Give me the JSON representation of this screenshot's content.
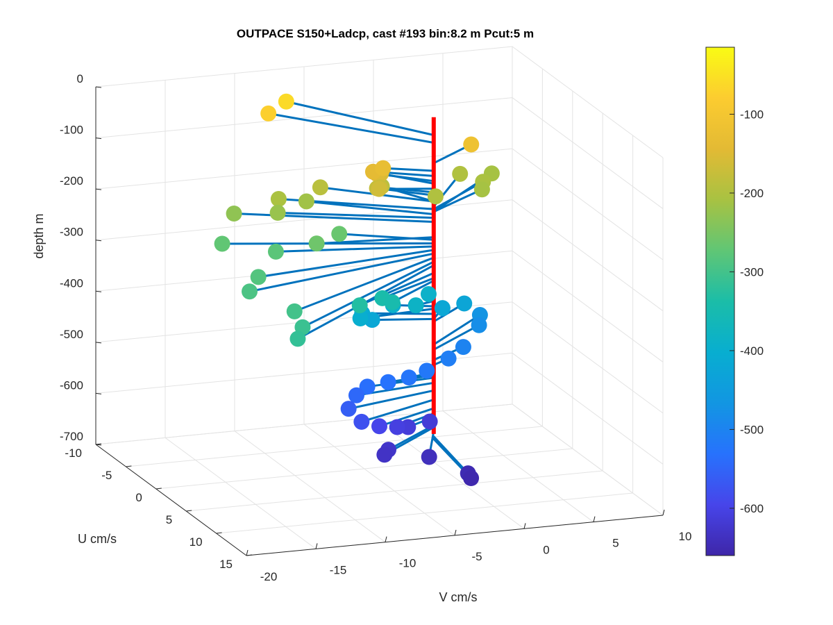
{
  "chart_data": {
    "type": "scatter",
    "plot_style": "3d-stem-scatter",
    "title": "OUTPACE S150+Ladcp, cast #193 bin:8.2 m  Pcut:5 m",
    "xlabel": "V cm/s",
    "ylabel": "U cm/s",
    "zlabel": "depth m",
    "xlim": [
      -20,
      10
    ],
    "ylim": [
      -10,
      15
    ],
    "zlim": [
      -700,
      0
    ],
    "x_ticks": [
      "-20",
      "-15",
      "-10",
      "-5",
      "0",
      "5",
      "10"
    ],
    "y_ticks": [
      "-10",
      "-5",
      "0",
      "5",
      "10",
      "15"
    ],
    "z_ticks": [
      "0",
      "-100",
      "-200",
      "-300",
      "-400",
      "-500",
      "-600",
      "-700"
    ],
    "grid": true,
    "colorbar": {
      "colormap": "parula",
      "range": [
        -660,
        -15
      ],
      "ticks": [
        "-100",
        "-200",
        "-300",
        "-400",
        "-500",
        "-600"
      ]
    },
    "stem_color": "#0072bd",
    "axis_line_color": "#ff0000",
    "series": [
      {
        "points": [
          {
            "v": 4.0,
            "u": -3.0,
            "depth": -115,
            "c": -115
          },
          {
            "v": -3.0,
            "u": -1.5,
            "depth": -130,
            "c": -130
          },
          {
            "v": -3.5,
            "u": -2.0,
            "depth": -140,
            "c": -140
          },
          {
            "v": -3.0,
            "u": -2.5,
            "depth": -150,
            "c": -150
          },
          {
            "v": -2.5,
            "u": -3.0,
            "depth": -155,
            "c": -155
          },
          {
            "v": -3.5,
            "u": -1.0,
            "depth": -165,
            "c": -165
          },
          {
            "v": -3.0,
            "u": -2.0,
            "depth": -172,
            "c": -172
          },
          {
            "v": -3.0,
            "u": -2.5,
            "depth": -178,
            "c": -178
          },
          {
            "v": -6.5,
            "u": -9.5,
            "depth": -60,
            "c": -60
          },
          {
            "v": -8.0,
            "u": -9.0,
            "depth": -75,
            "c": -75
          },
          {
            "v": -6.0,
            "u": -5.0,
            "depth": -190,
            "c": -190
          },
          {
            "v": -9.0,
            "u": -5.0,
            "depth": -205,
            "c": -205
          },
          {
            "v": -7.0,
            "u": -5.0,
            "depth": -215,
            "c": -215
          },
          {
            "v": -9.5,
            "u": -4.0,
            "depth": -222,
            "c": -222
          },
          {
            "v": -12.0,
            "u": -5.5,
            "depth": -230,
            "c": -230
          },
          {
            "v": -8.0,
            "u": -1.0,
            "depth": -260,
            "c": -260
          },
          {
            "v": -5.5,
            "u": -3.0,
            "depth": -265,
            "c": -265
          },
          {
            "v": -13.5,
            "u": -4.0,
            "depth": -272,
            "c": -272
          },
          {
            "v": -10.5,
            "u": -2.0,
            "depth": -278,
            "c": -278
          },
          {
            "v": -13.5,
            "u": 2.0,
            "depth": -285,
            "c": -285
          },
          {
            "v": -15.0,
            "u": 4.0,
            "depth": -292,
            "c": -292
          },
          {
            "v": -13.5,
            "u": 8.0,
            "depth": -300,
            "c": -300
          },
          {
            "v": -14.0,
            "u": 10.5,
            "depth": -308,
            "c": -308
          },
          {
            "v": -15.0,
            "u": 12.0,
            "depth": -315,
            "c": -315
          },
          {
            "v": -7.5,
            "u": 5.0,
            "depth": -330,
            "c": -330
          },
          {
            "v": -5.0,
            "u": 3.0,
            "depth": -340,
            "c": -340
          },
          {
            "v": -4.5,
            "u": 3.5,
            "depth": -345,
            "c": -345
          },
          {
            "v": -2.0,
            "u": -4.0,
            "depth": -190,
            "c": -190
          },
          {
            "v": 1.0,
            "u": -2.0,
            "depth": -200,
            "c": -200
          },
          {
            "v": 4.5,
            "u": -6.0,
            "depth": -200,
            "c": -200
          },
          {
            "v": 7.0,
            "u": -6.5,
            "depth": -210,
            "c": -210
          },
          {
            "v": 5.5,
            "u": -4.5,
            "depth": -205,
            "c": -205
          },
          {
            "v": 5.0,
            "u": -3.5,
            "depth": -210,
            "c": -210
          },
          {
            "v": -1.5,
            "u": 0.5,
            "depth": -385,
            "c": -385
          },
          {
            "v": 0.5,
            "u": -2.0,
            "depth": -390,
            "c": -390
          },
          {
            "v": -2.5,
            "u": -1.0,
            "depth": -395,
            "c": -395
          },
          {
            "v": -5.5,
            "u": 0.5,
            "depth": -400,
            "c": -400
          },
          {
            "v": -4.5,
            "u": -1.5,
            "depth": -410,
            "c": -410
          },
          {
            "v": -4.0,
            "u": -1.0,
            "depth": -420,
            "c": -420
          },
          {
            "v": 1.5,
            "u": -2.0,
            "depth": -420,
            "c": -420
          },
          {
            "v": 3.5,
            "u": -3.0,
            "depth": -425,
            "c": -425
          },
          {
            "v": 5.5,
            "u": -5.0,
            "depth": -470,
            "c": -470
          },
          {
            "v": 5.0,
            "u": -4.0,
            "depth": -480,
            "c": -480
          },
          {
            "v": 3.0,
            "u": -2.0,
            "depth": -500,
            "c": -500
          },
          {
            "v": 1.5,
            "u": -1.0,
            "depth": -510,
            "c": -510
          },
          {
            "v": -0.5,
            "u": 0.0,
            "depth": -520,
            "c": -520
          },
          {
            "v": -2.0,
            "u": 0.5,
            "depth": -525,
            "c": -525
          },
          {
            "v": -3.5,
            "u": 0.5,
            "depth": -530,
            "c": -530
          },
          {
            "v": -5.0,
            "u": 0.5,
            "depth": -535,
            "c": -535
          },
          {
            "v": -6.0,
            "u": 1.0,
            "depth": -545,
            "c": -545
          },
          {
            "v": -7.0,
            "u": 2.0,
            "depth": -560,
            "c": -560
          },
          {
            "v": -6.5,
            "u": 3.0,
            "depth": -578,
            "c": -578
          },
          {
            "v": -5.0,
            "u": 2.5,
            "depth": -595,
            "c": -595
          },
          {
            "v": -3.5,
            "u": 2.0,
            "depth": -605,
            "c": -605
          },
          {
            "v": -2.5,
            "u": 1.5,
            "depth": -612,
            "c": -612
          },
          {
            "v": -0.5,
            "u": 0.5,
            "depth": -615,
            "c": -615
          },
          {
            "v": -5.0,
            "u": 4.0,
            "depth": -628,
            "c": -628
          },
          {
            "v": -5.5,
            "u": 4.5,
            "depth": -632,
            "c": -632
          },
          {
            "v": -2.5,
            "u": 5.0,
            "depth": -640,
            "c": -640
          },
          {
            "v": -1.0,
            "u": 8.0,
            "depth": -650,
            "c": -650
          },
          {
            "v": -1.0,
            "u": 8.5,
            "depth": -655,
            "c": -655
          }
        ]
      }
    ]
  }
}
